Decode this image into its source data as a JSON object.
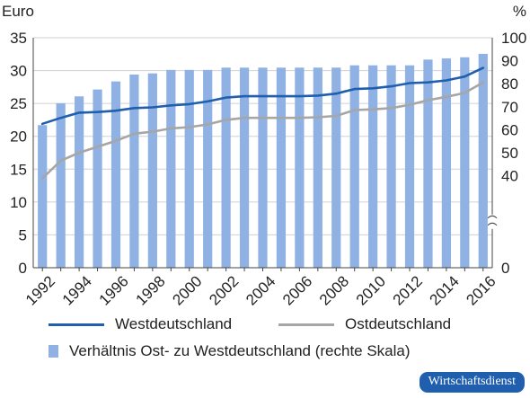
{
  "chart_data": {
    "type": "bar+line",
    "left_axis_unit": "Euro",
    "right_axis_unit": "%",
    "left_ylim": [
      0,
      35
    ],
    "right_ylim": [
      0,
      100
    ],
    "left_ticks": [
      0,
      5,
      10,
      15,
      20,
      25,
      30,
      35
    ],
    "right_ticks": [
      0,
      40,
      50,
      60,
      70,
      80,
      90,
      100
    ],
    "right_axis_break": true,
    "years": [
      1992,
      1993,
      1994,
      1995,
      1996,
      1997,
      1998,
      1999,
      2000,
      2001,
      2002,
      2003,
      2004,
      2005,
      2006,
      2007,
      2008,
      2009,
      2010,
      2011,
      2012,
      2013,
      2014,
      2015,
      2016
    ],
    "x_tick_labels": [
      "1992",
      "1994",
      "1996",
      "1998",
      "2000",
      "2002",
      "2004",
      "2006",
      "2008",
      "2010",
      "2012",
      "2014",
      "2016"
    ],
    "bars": {
      "name": "Verhältnis Ost- zu Westdeutschland (rechte Skala)",
      "axis": "right",
      "color": "#8fb1e3",
      "values": [
        62,
        71.5,
        74.5,
        77.5,
        81,
        84,
        84.5,
        86,
        86,
        86,
        87,
        87,
        87,
        87,
        87,
        87,
        87,
        88,
        88,
        88,
        88,
        90.5,
        91,
        91.5,
        93
      ]
    },
    "lines": [
      {
        "name": "Westdeutschland",
        "axis": "left",
        "color": "#1f5fae",
        "values": [
          21.9,
          22.8,
          23.6,
          23.7,
          23.9,
          24.3,
          24.4,
          24.7,
          24.9,
          25.3,
          25.9,
          26.1,
          26.1,
          26.1,
          26.1,
          26.2,
          26.5,
          27.2,
          27.3,
          27.6,
          28.1,
          28.2,
          28.5,
          29.1,
          30.4
        ]
      },
      {
        "name": "Ostdeutschland",
        "axis": "left",
        "color": "#a6a6a6",
        "values": [
          13.6,
          16.3,
          17.5,
          18.4,
          19.3,
          20.4,
          20.7,
          21.2,
          21.4,
          21.8,
          22.5,
          22.8,
          22.8,
          22.8,
          22.8,
          22.9,
          23.1,
          24.0,
          24.1,
          24.3,
          24.8,
          25.5,
          26.0,
          26.6,
          28.2
        ]
      }
    ],
    "gridlines": true
  },
  "legend": {
    "west_label": "Westdeutschland",
    "east_label": "Ostdeutschland",
    "ratio_label": "Verhältnis Ost- zu Westdeutschland (rechte Skala)"
  },
  "badge": {
    "text": "Wirtschaftsdienst",
    "color": "#1f5fae"
  }
}
